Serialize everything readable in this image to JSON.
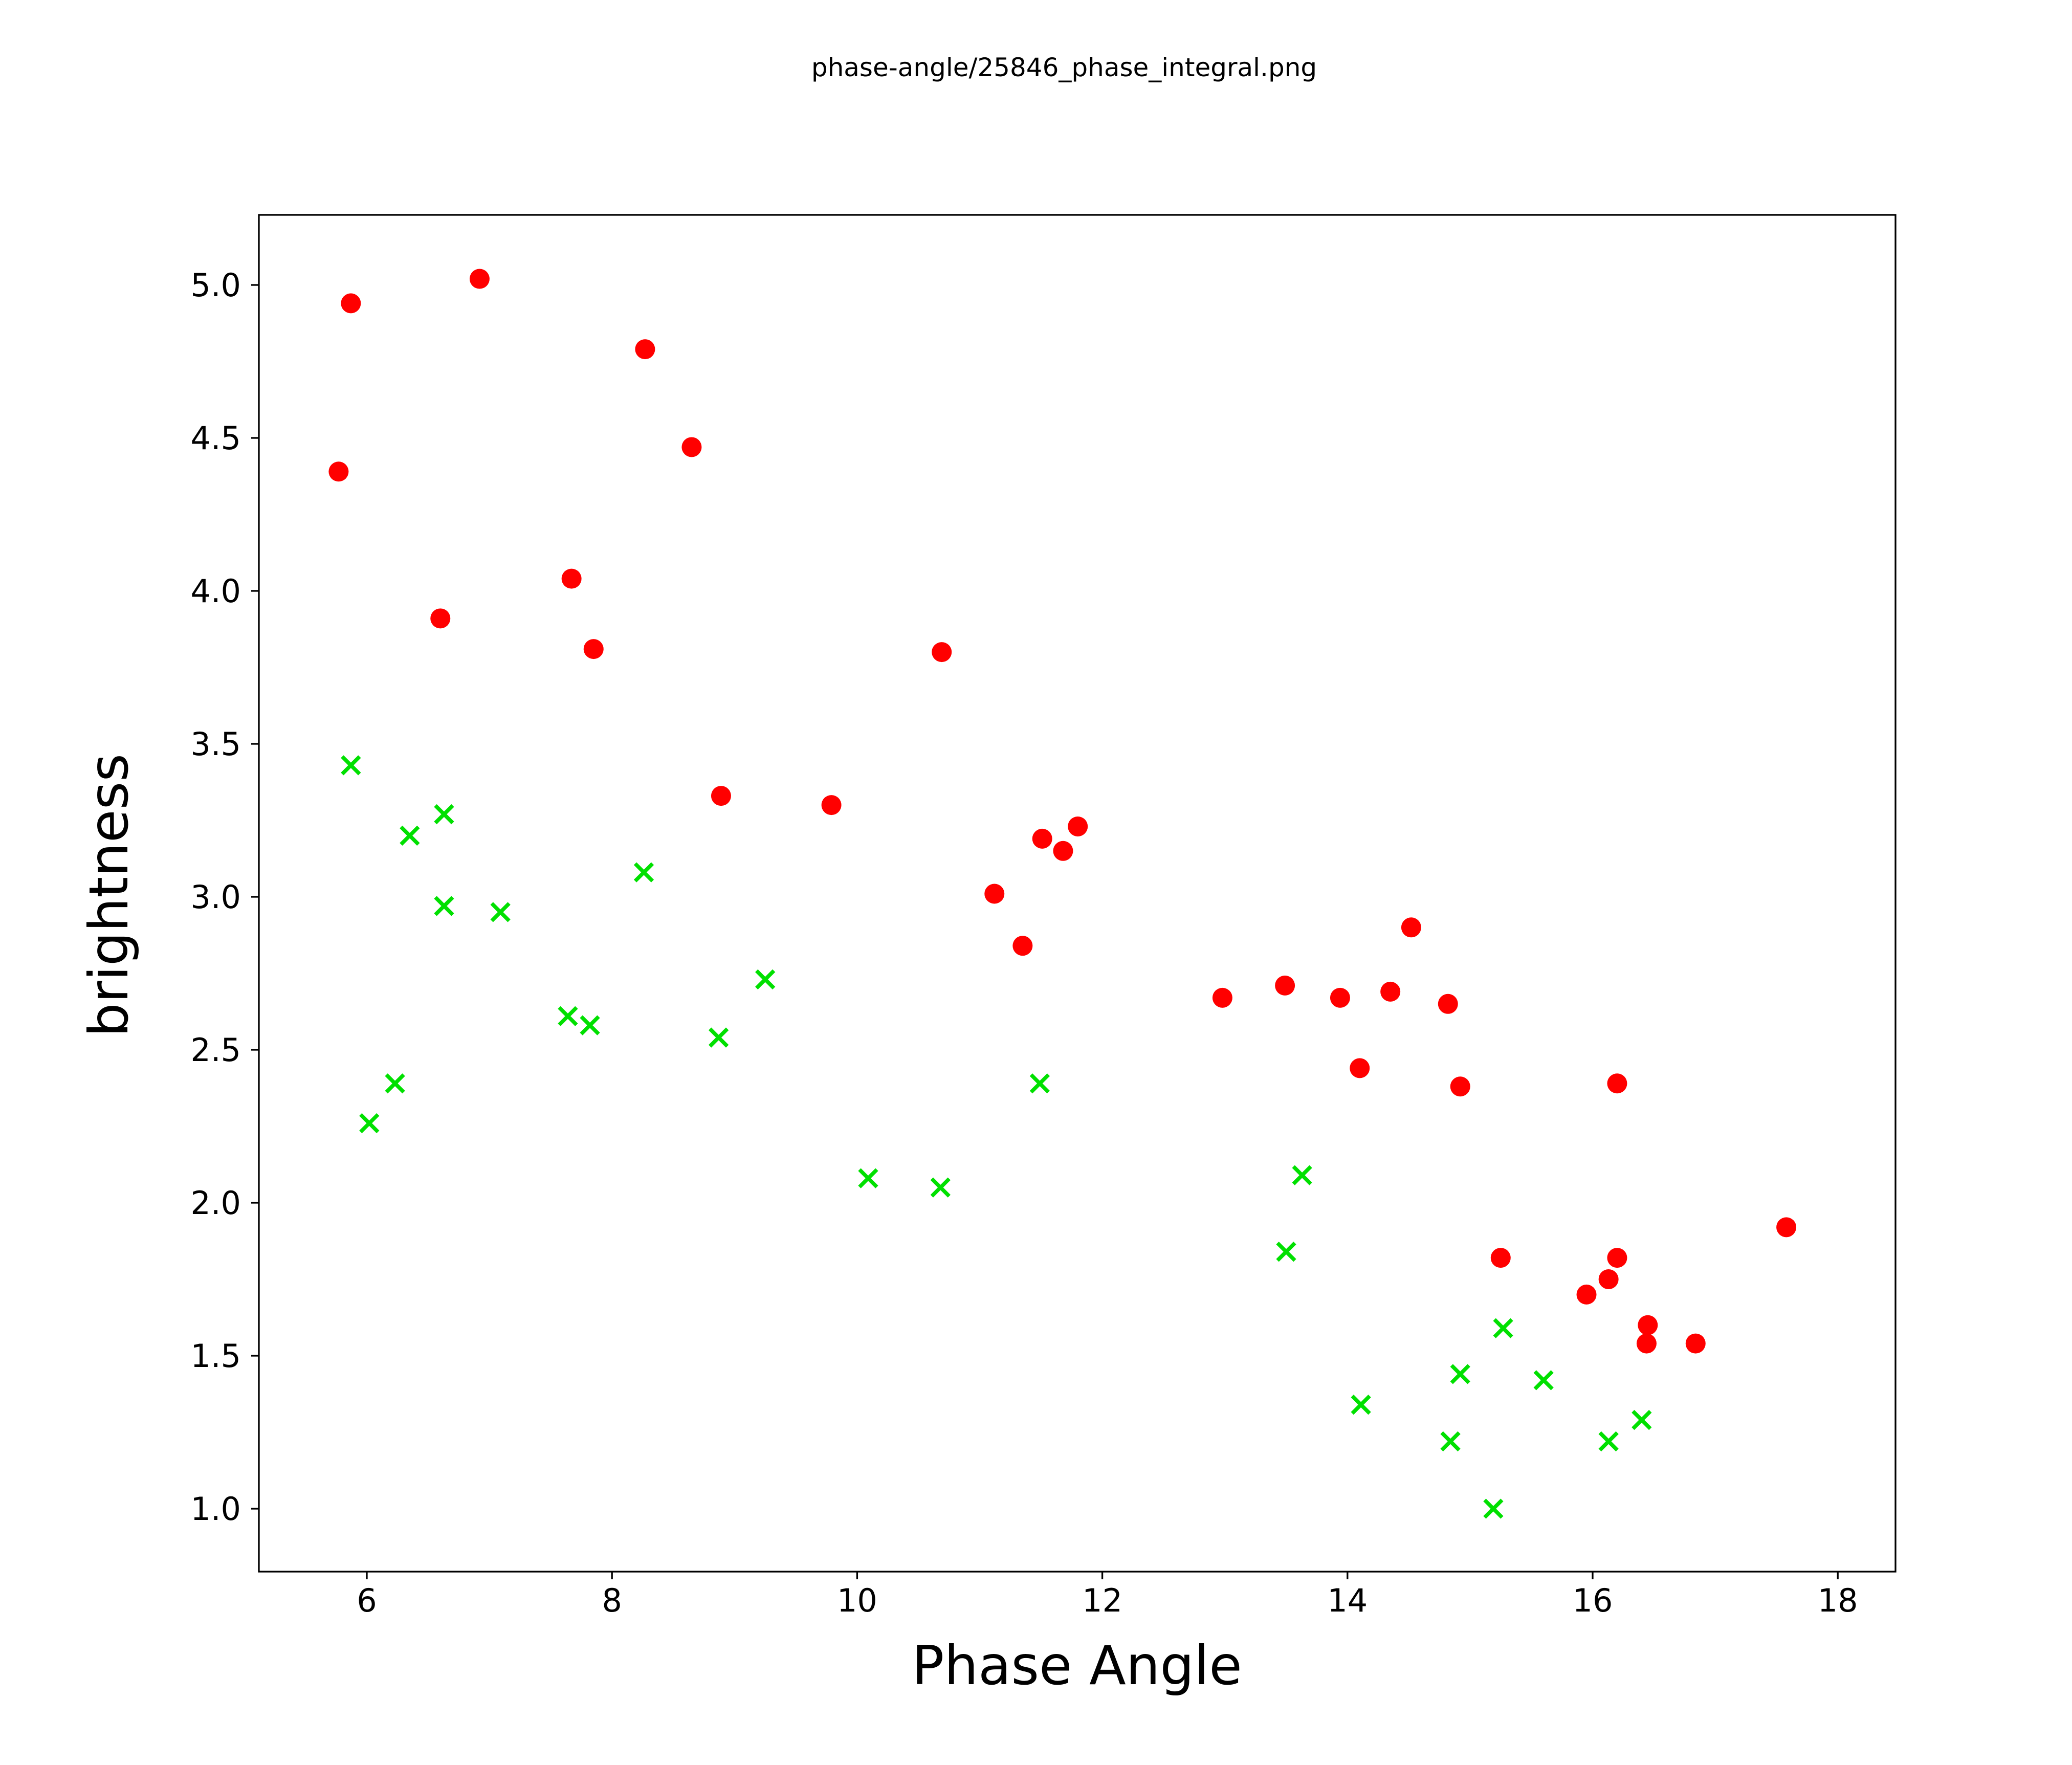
{
  "figure": {
    "title": "phase-angle/25846_phase_integral.png",
    "background_color": "#ffffff",
    "text_color": "#000000"
  },
  "chart_data": {
    "type": "scatter",
    "title": "phase-angle/25846_phase_integral.png",
    "xlabel": "Phase Angle",
    "ylabel": "brightness",
    "xlim": [
      5.1,
      18.5
    ],
    "ylim": [
      0.79,
      5.23
    ],
    "x_ticks": [
      6,
      8,
      10,
      12,
      14,
      16,
      18
    ],
    "x_tick_labels": [
      "6",
      "8",
      "10",
      "12",
      "14",
      "16",
      "18"
    ],
    "y_ticks": [
      1.0,
      1.5,
      2.0,
      2.5,
      3.0,
      3.5,
      4.0,
      4.5,
      5.0
    ],
    "y_tick_labels": [
      "1.0",
      "1.5",
      "2.0",
      "2.5",
      "3.0",
      "3.5",
      "4.0",
      "4.5",
      "5.0"
    ],
    "grid": false,
    "legend_position": "none",
    "series": [
      {
        "name": "red-circles",
        "marker": "circle",
        "color": "#ff0000",
        "points": [
          [
            5.77,
            4.39
          ],
          [
            5.87,
            4.94
          ],
          [
            6.6,
            3.91
          ],
          [
            6.92,
            5.02
          ],
          [
            7.67,
            4.04
          ],
          [
            7.85,
            3.81
          ],
          [
            8.27,
            4.79
          ],
          [
            8.65,
            4.47
          ],
          [
            8.89,
            3.33
          ],
          [
            9.79,
            3.3
          ],
          [
            10.69,
            3.8
          ],
          [
            11.12,
            3.01
          ],
          [
            11.35,
            2.84
          ],
          [
            11.51,
            3.19
          ],
          [
            11.68,
            3.15
          ],
          [
            11.8,
            3.23
          ],
          [
            12.98,
            2.67
          ],
          [
            13.49,
            2.71
          ],
          [
            13.94,
            2.67
          ],
          [
            14.1,
            2.44
          ],
          [
            14.35,
            2.69
          ],
          [
            14.52,
            2.9
          ],
          [
            14.82,
            2.65
          ],
          [
            14.92,
            2.38
          ],
          [
            15.25,
            1.82
          ],
          [
            15.95,
            1.7
          ],
          [
            16.13,
            1.75
          ],
          [
            16.2,
            1.82
          ],
          [
            16.2,
            2.39
          ],
          [
            16.44,
            1.54
          ],
          [
            16.45,
            1.6
          ],
          [
            16.84,
            1.54
          ],
          [
            17.58,
            1.92
          ]
        ]
      },
      {
        "name": "green-crosses",
        "marker": "x",
        "color": "#00e000",
        "points": [
          [
            5.87,
            3.43
          ],
          [
            6.02,
            2.26
          ],
          [
            6.23,
            2.39
          ],
          [
            6.35,
            3.2
          ],
          [
            6.63,
            3.27
          ],
          [
            6.63,
            2.97
          ],
          [
            7.09,
            2.95
          ],
          [
            7.64,
            2.61
          ],
          [
            7.82,
            2.58
          ],
          [
            8.26,
            3.08
          ],
          [
            8.87,
            2.54
          ],
          [
            9.25,
            2.73
          ],
          [
            10.09,
            2.08
          ],
          [
            10.68,
            2.05
          ],
          [
            11.49,
            2.39
          ],
          [
            13.5,
            1.84
          ],
          [
            13.63,
            2.09
          ],
          [
            14.11,
            1.34
          ],
          [
            14.84,
            1.22
          ],
          [
            14.92,
            1.44
          ],
          [
            15.19,
            1.0
          ],
          [
            15.27,
            1.59
          ],
          [
            15.6,
            1.42
          ],
          [
            16.13,
            1.22
          ],
          [
            16.4,
            1.29
          ]
        ]
      }
    ]
  }
}
